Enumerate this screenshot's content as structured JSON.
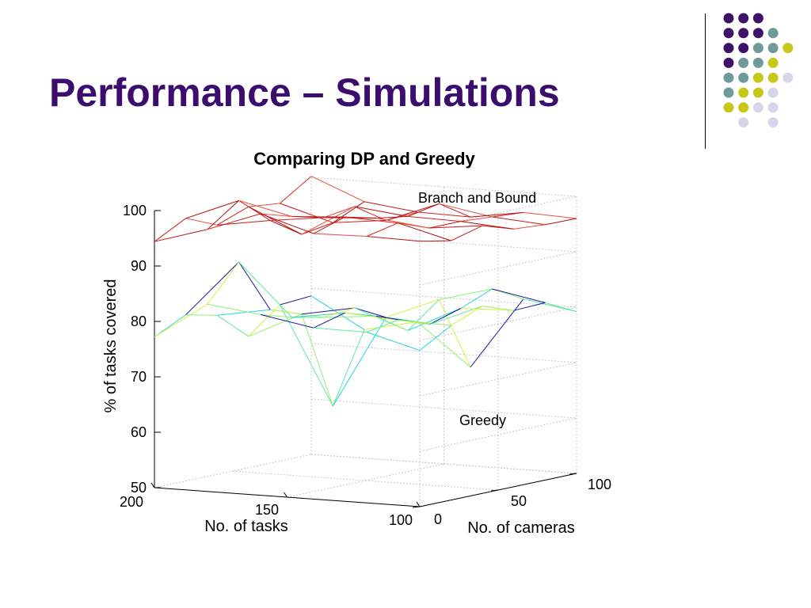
{
  "slide": {
    "title": "Performance – Simulations"
  },
  "decoration": {
    "colors": {
      "purple": "#3d1268",
      "teal": "#6e9a9a",
      "yellow": "#c8c81a",
      "lavender": "#d6d6e8"
    },
    "dot_grid": [
      [
        "purple",
        "purple",
        "purple",
        null,
        null
      ],
      [
        "purple",
        "purple",
        "purple",
        "teal",
        null
      ],
      [
        "purple",
        "purple",
        "teal",
        "teal",
        "yellow"
      ],
      [
        "purple",
        "teal",
        "teal",
        "yellow",
        null
      ],
      [
        "teal",
        "teal",
        "yellow",
        "yellow",
        "lavender"
      ],
      [
        "teal",
        "yellow",
        "yellow",
        "lavender",
        null
      ],
      [
        "yellow",
        "yellow",
        "lavender",
        "lavender",
        null
      ],
      [
        null,
        "lavender",
        null,
        "lavender",
        null
      ]
    ]
  },
  "chart_data": {
    "type": "surface-3d",
    "title": "Comparing DP and Greedy",
    "xlabel": "No. of tasks",
    "ylabel": "No. of cameras",
    "zlabel": "% of tasks covered",
    "x_ticks": [
      "200",
      "150",
      "100"
    ],
    "y_ticks": [
      "0",
      "50",
      "100"
    ],
    "z_ticks": [
      "50",
      "60",
      "70",
      "80",
      "90",
      "100"
    ],
    "zlim": [
      50,
      100
    ],
    "grid": true,
    "x": [
      200,
      180,
      160,
      140,
      120,
      100
    ],
    "y": [
      0,
      20,
      40,
      60,
      80,
      100
    ],
    "series": [
      {
        "name": "Branch and Bound",
        "colors": [
          "#d62020",
          "#c01818",
          "#e85040",
          "#b01010"
        ],
        "z": [
          [
            94.4,
            97.4,
            95.0,
            97.1,
            96.5,
            100.2
          ],
          [
            97.3,
            101.3,
            96.5,
            92.8,
            93.7,
            96.3
          ],
          [
            100.8,
            99.1,
            97.7,
            98.5,
            94.8,
            95.1
          ],
          [
            97.9,
            99.7,
            98.3,
            97.4,
            98.5,
            94.9
          ],
          [
            98.1,
            99.3,
            97.2,
            97.2,
            96.8,
            96.4
          ],
          [
            97.9,
            96.8,
            98.3,
            96.5,
            96.1,
            96.0
          ]
        ]
      },
      {
        "name": "Greedy",
        "colors": [
          "#20d8d8",
          "#d8f040",
          "#90f070",
          "#1818a0",
          "#60e8a0"
        ],
        "z": [
          [
            77.2,
            80.0,
            78.7,
            73.7,
            78.2,
            78.6
          ],
          [
            83.8,
            90.2,
            80.4,
            78.4,
            60.6,
            73.2
          ],
          [
            82.6,
            80.9,
            79.7,
            80.2,
            77.3,
            75.3
          ],
          [
            80.9,
            82.4,
            80.6,
            76.8,
            81.2,
            67.8
          ],
          [
            80.8,
            81.8,
            79.8,
            81.5,
            83.8,
            80.8
          ],
          [
            78.2,
            81.5,
            83.8,
            81.8,
            82.0,
            79.2
          ]
        ]
      }
    ]
  }
}
